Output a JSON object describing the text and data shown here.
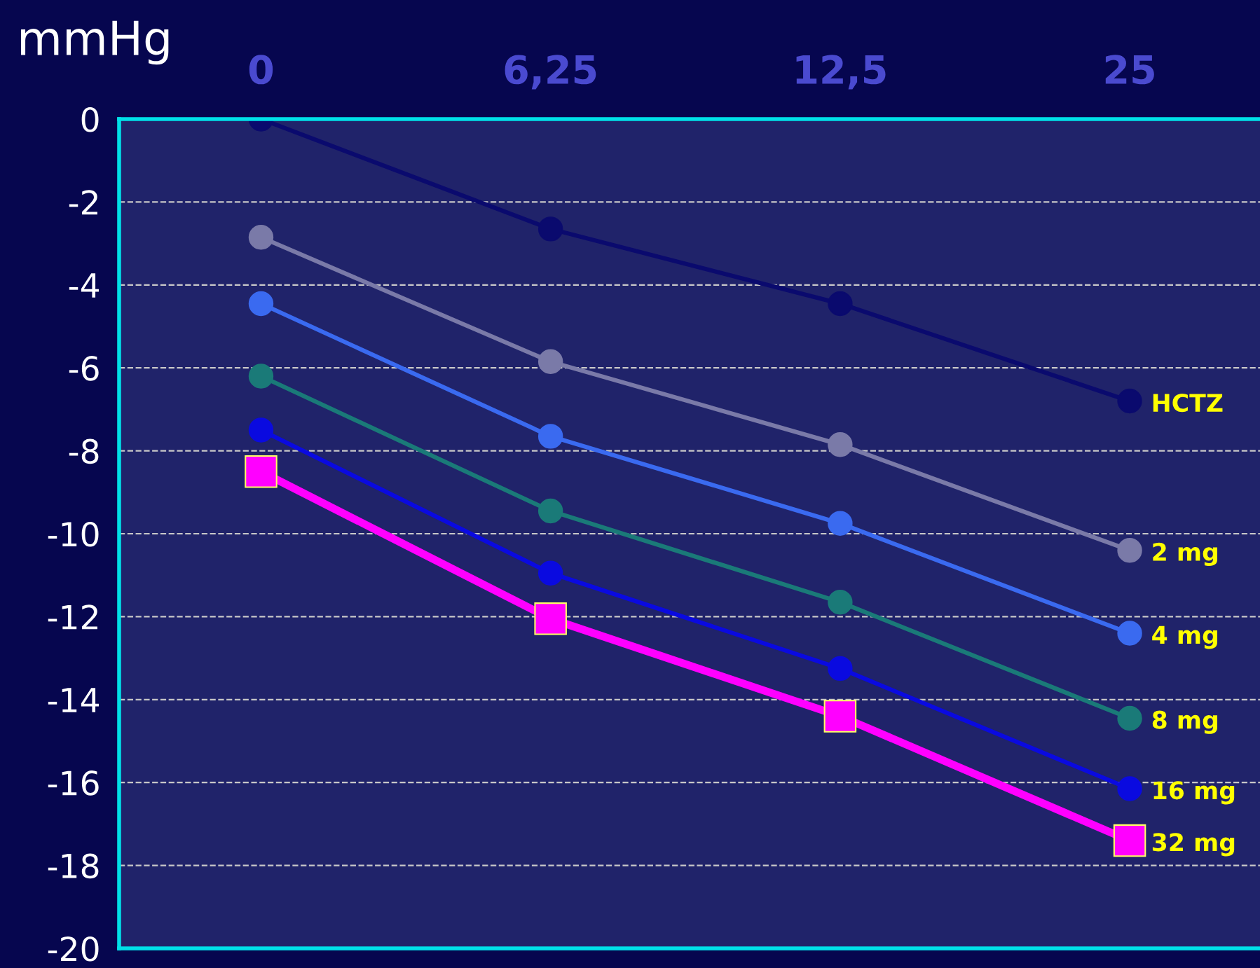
{
  "chart_data": {
    "type": "line",
    "ylabel": "mmHg",
    "categories": [
      "0",
      "6,25",
      "12,5",
      "25"
    ],
    "series": [
      {
        "name": "HCTZ",
        "color": "#0a0a6e",
        "marker": "circle",
        "values": [
          0,
          -2.65,
          -4.45,
          -6.8
        ]
      },
      {
        "name": "2 mg",
        "color": "#7a7aa8",
        "marker": "circle",
        "values": [
          -2.85,
          -5.85,
          -7.85,
          -10.4
        ]
      },
      {
        "name": "4 mg",
        "color": "#3a6af0",
        "marker": "circle",
        "values": [
          -4.45,
          -7.65,
          -9.75,
          -12.4
        ]
      },
      {
        "name": "8 mg",
        "color": "#1a7a78",
        "marker": "circle",
        "values": [
          -6.2,
          -9.45,
          -11.65,
          -14.45
        ]
      },
      {
        "name": "16 mg",
        "color": "#0a0ae0",
        "marker": "circle",
        "values": [
          -7.5,
          -10.95,
          -13.25,
          -16.15
        ]
      },
      {
        "name": "32 mg",
        "color": "#ff00ff",
        "marker": "square",
        "values": [
          -8.5,
          -12.05,
          -14.4,
          -17.4
        ]
      }
    ],
    "ylim": [
      -20,
      0
    ],
    "yticks": [
      -20,
      -18,
      -16,
      -14,
      -12,
      -10,
      -8,
      -6,
      -4,
      -2,
      0
    ],
    "grid": "y"
  }
}
